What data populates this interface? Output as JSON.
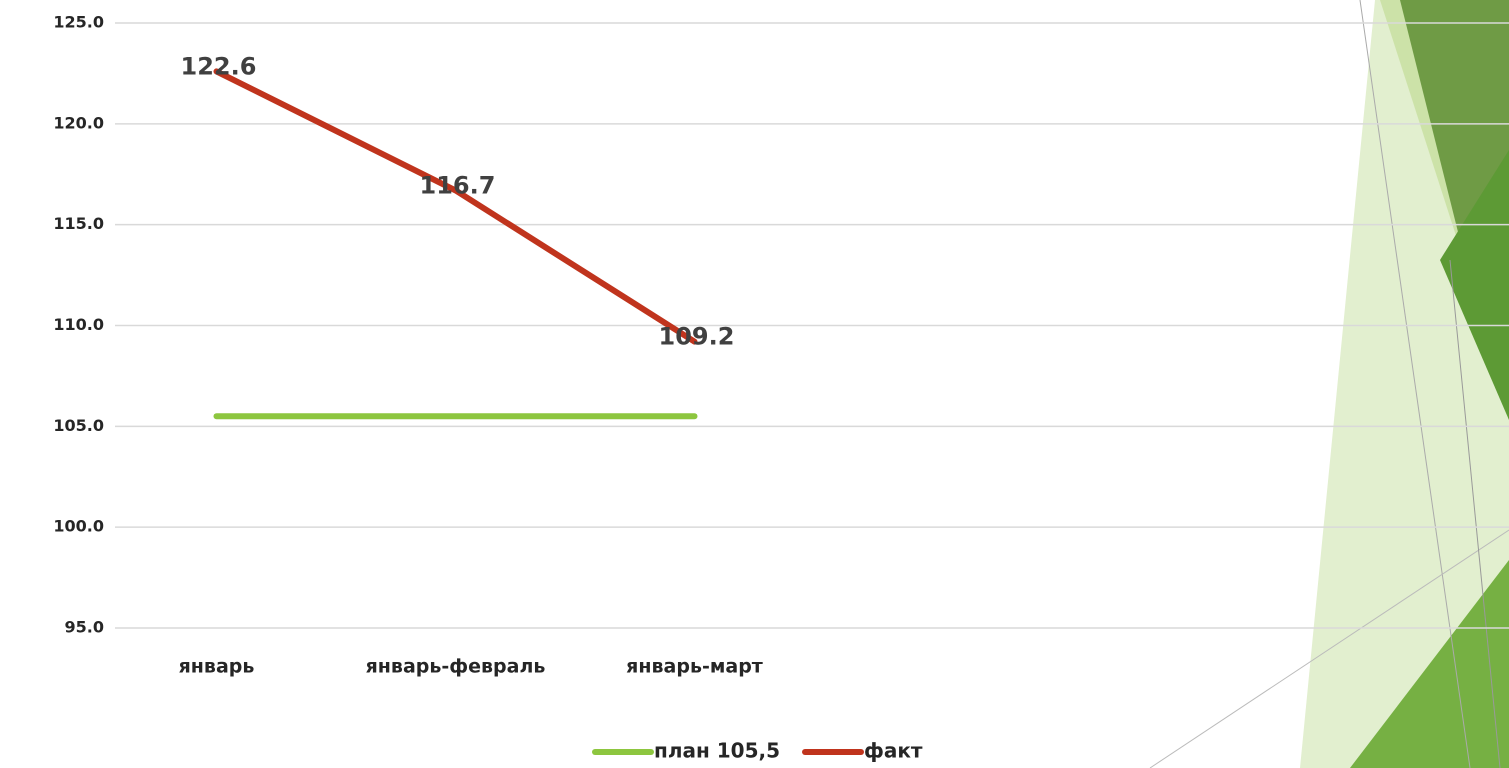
{
  "chart_data": {
    "type": "line",
    "categories": [
      "январь",
      "январь-февраль",
      "январь-март",
      null,
      null,
      null
    ],
    "series": [
      {
        "name": "план 105,5",
        "color": "#8dc63f",
        "values": [
          105.5,
          105.5,
          105.5,
          null,
          null,
          null
        ]
      },
      {
        "name": "факт",
        "color": "#c0341d",
        "values": [
          122.6,
          116.7,
          109.2,
          null,
          null,
          null
        ]
      }
    ],
    "ylim": [
      95,
      125
    ],
    "yticks": [
      {
        "value": 95,
        "label": "95.0"
      },
      {
        "value": 100,
        "label": "100.0"
      },
      {
        "value": 105,
        "label": "105.0"
      },
      {
        "value": 110,
        "label": "110.0"
      },
      {
        "value": 115,
        "label": "115.0"
      },
      {
        "value": 120,
        "label": "120.0"
      },
      {
        "value": 125,
        "label": "125.0"
      }
    ],
    "grid": true,
    "legend": "bottom",
    "data_labels_series": "факт"
  }
}
